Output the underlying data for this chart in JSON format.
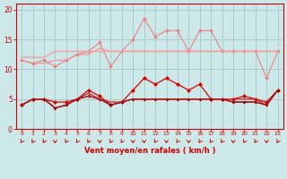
{
  "bg_color": "#cce8e8",
  "grid_color": "#aacccc",
  "xlabel": "Vent moyen/en rafales ( km/h )",
  "xlabel_color": "#cc0000",
  "tick_color": "#cc0000",
  "axis_color": "#cc0000",
  "x_ticks": [
    0,
    1,
    2,
    3,
    4,
    5,
    6,
    7,
    8,
    9,
    10,
    11,
    12,
    13,
    14,
    15,
    16,
    17,
    18,
    19,
    20,
    21,
    22,
    23
  ],
  "ylim": [
    0,
    21
  ],
  "yticks": [
    0,
    5,
    10,
    15,
    20
  ],
  "arrow_color": "#cc0000",
  "lines": [
    {
      "y": [
        11.5,
        11.0,
        11.0,
        11.5,
        11.5,
        12.5,
        12.5,
        13.5,
        13.0,
        13.0,
        13.0,
        13.0,
        13.0,
        13.0,
        13.0,
        13.0,
        13.0,
        13.0,
        13.0,
        13.0,
        13.0,
        13.0,
        13.0,
        13.0
      ],
      "color": "#f0a0a0",
      "lw": 1.0,
      "marker": null
    },
    {
      "y": [
        11.5,
        11.0,
        11.5,
        10.5,
        11.5,
        12.5,
        13.0,
        14.5,
        10.5,
        13.0,
        15.0,
        18.5,
        15.5,
        16.5,
        16.5,
        13.0,
        16.5,
        16.5,
        13.0,
        13.0,
        13.0,
        13.0,
        8.5,
        13.0
      ],
      "color": "#f08080",
      "lw": 0.8,
      "marker": "D",
      "ms": 1.8
    },
    {
      "y": [
        12.0,
        12.0,
        12.0,
        13.0,
        13.0,
        13.0,
        13.0,
        13.0,
        13.0,
        13.0,
        13.0,
        13.0,
        13.0,
        13.0,
        13.0,
        13.0,
        13.0,
        13.0,
        13.0,
        13.0,
        13.0,
        13.0,
        13.0,
        13.0
      ],
      "color": "#f0a0a0",
      "lw": 1.0,
      "marker": null
    },
    {
      "y": [
        4.0,
        5.0,
        5.0,
        4.5,
        4.5,
        5.0,
        6.5,
        5.5,
        4.0,
        4.5,
        6.5,
        8.5,
        7.5,
        8.5,
        7.5,
        6.5,
        7.5,
        5.0,
        5.0,
        5.0,
        5.5,
        5.0,
        4.5,
        6.5
      ],
      "color": "#dd0000",
      "lw": 0.9,
      "marker": "D",
      "ms": 2.0
    },
    {
      "y": [
        4.0,
        5.0,
        5.0,
        3.5,
        4.0,
        5.0,
        5.5,
        5.0,
        4.0,
        4.5,
        5.0,
        5.0,
        5.0,
        5.0,
        5.0,
        5.0,
        5.0,
        5.0,
        5.0,
        4.5,
        4.5,
        4.5,
        4.0,
        6.5
      ],
      "color": "#880000",
      "lw": 0.9,
      "marker": "D",
      "ms": 1.5
    },
    {
      "y": [
        4.0,
        5.0,
        5.0,
        3.5,
        4.0,
        5.0,
        5.5,
        5.0,
        4.5,
        4.5,
        5.0,
        5.0,
        5.0,
        5.0,
        5.0,
        5.0,
        5.0,
        5.0,
        5.0,
        5.0,
        5.0,
        5.0,
        4.0,
        6.5
      ],
      "color": "#cc2222",
      "lw": 0.9,
      "marker": null
    },
    {
      "y": [
        4.0,
        5.0,
        5.0,
        3.5,
        4.0,
        5.0,
        6.0,
        5.0,
        4.0,
        4.5,
        5.0,
        5.0,
        5.0,
        5.0,
        5.0,
        5.0,
        5.0,
        5.0,
        5.0,
        4.5,
        4.5,
        4.5,
        4.0,
        6.5
      ],
      "color": "#aa1111",
      "lw": 0.8,
      "marker": null
    }
  ],
  "arrow_angles_deg": [
    225,
    225,
    225,
    270,
    225,
    225,
    225,
    270,
    225,
    225,
    270,
    270,
    225,
    270,
    225,
    270,
    225,
    225,
    225,
    270,
    225,
    225,
    270,
    225
  ]
}
